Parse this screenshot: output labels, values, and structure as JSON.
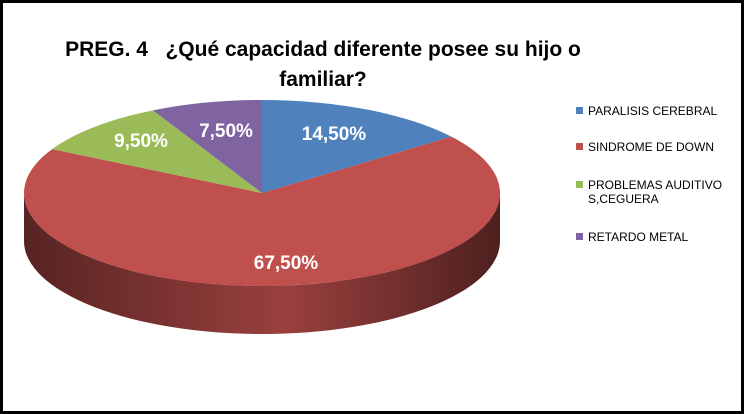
{
  "chart_data": {
    "type": "pie3d",
    "title": "PREG. 4   ¿Qué capacidad diferente posee su hijo o familiar?",
    "categories": [
      "PARALISIS CEREBRAL",
      "SINDROME DE DOWN",
      "PROBLEMAS AUDITIVOS,CEGUERA",
      "RETARDO METAL"
    ],
    "values": [
      14.5,
      67.5,
      9.5,
      7.5
    ],
    "value_labels": [
      "14,50%",
      "67,50%",
      "9,50%",
      "7,50%"
    ],
    "colors": [
      "#4f81bd",
      "#c0504d",
      "#9bbb59",
      "#8064a2"
    ],
    "legend": "right"
  }
}
